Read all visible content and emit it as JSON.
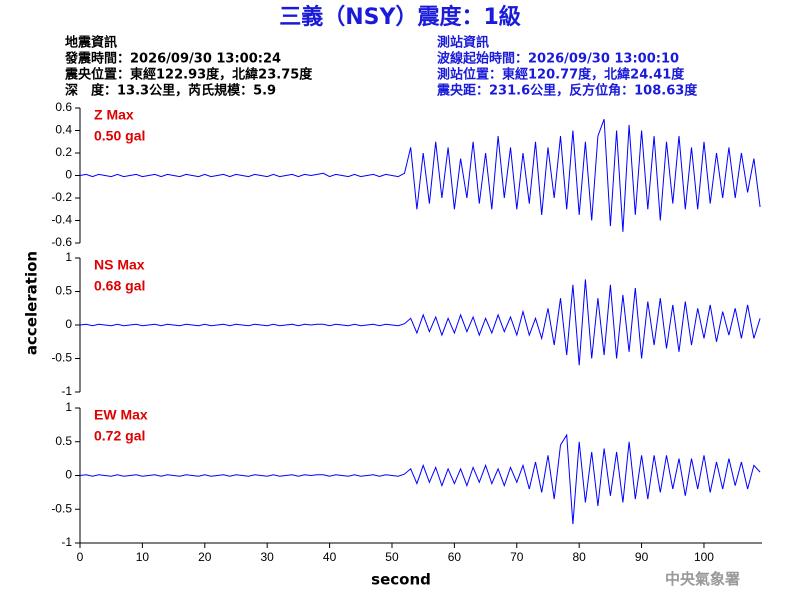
{
  "title": "三義（NSY）震度：1級",
  "event_info": [
    "地震資訊",
    "發震時間：2026/09/30 13:00:24",
    "震央位置：東經122.93度，北緯23.75度",
    "深　度：13.3公里，芮氏規模：5.9"
  ],
  "station_info": [
    "測站資訊",
    "波線起始時間：2026/09/30 13:00:10",
    "測站位置：東經120.77度，北緯24.41度",
    "震央距：231.6公里，反方位角：108.63度"
  ],
  "ylabel": "acceleration",
  "footer": "中央氣象署",
  "chart_data": [
    {
      "type": "line",
      "max_label": "Z Max",
      "max_value": "0.50 gal",
      "color": "#0000ff",
      "xlim": [
        0,
        109.3
      ],
      "ylim": [
        -0.6,
        0.6
      ],
      "yticks": [
        0.6,
        0.4,
        0.2,
        0,
        -0.2,
        -0.4,
        -0.6
      ],
      "x": [
        0,
        1,
        2,
        3,
        4,
        5,
        6,
        7,
        8,
        9,
        10,
        11,
        12,
        13,
        14,
        15,
        16,
        17,
        18,
        19,
        20,
        21,
        22,
        23,
        24,
        25,
        26,
        27,
        28,
        29,
        30,
        31,
        32,
        33,
        34,
        35,
        36,
        37,
        38,
        39,
        40,
        41,
        42,
        43,
        44,
        45,
        46,
        47,
        48,
        49,
        50,
        51,
        52,
        53,
        54,
        55,
        56,
        57,
        58,
        59,
        60,
        61,
        62,
        63,
        64,
        65,
        66,
        67,
        68,
        69,
        70,
        71,
        72,
        73,
        74,
        75,
        76,
        77,
        78,
        79,
        80,
        81,
        82,
        83,
        84,
        85,
        86,
        87,
        88,
        89,
        90,
        91,
        92,
        93,
        94,
        95,
        96,
        97,
        98,
        99,
        100,
        101,
        102,
        103,
        104,
        105,
        106,
        107,
        108,
        109
      ],
      "values": [
        0,
        0.01,
        -0.01,
        0.01,
        0,
        -0.01,
        0.01,
        -0.01,
        0,
        0.01,
        -0.01,
        0,
        0.01,
        -0.01,
        0.01,
        0,
        -0.01,
        0.01,
        0,
        -0.01,
        0.01,
        -0.01,
        0,
        0.01,
        -0.01,
        0.01,
        0,
        -0.01,
        0.01,
        0,
        -0.01,
        0.01,
        -0.01,
        0,
        0.01,
        -0.01,
        0.01,
        0,
        0.01,
        0.02,
        -0.01,
        0.01,
        0,
        -0.01,
        0.01,
        -0.01,
        0,
        0.01,
        -0.01,
        0.01,
        0,
        -0.01,
        0.02,
        0.25,
        -0.3,
        0.2,
        -0.25,
        0.3,
        -0.2,
        0.25,
        -0.3,
        0.15,
        -0.2,
        0.3,
        -0.25,
        0.2,
        -0.3,
        0.35,
        -0.2,
        0.25,
        -0.3,
        0.2,
        -0.25,
        0.3,
        -0.35,
        0.25,
        -0.2,
        0.35,
        -0.3,
        0.4,
        -0.35,
        0.3,
        -0.4,
        0.35,
        0.5,
        -0.45,
        0.4,
        -0.5,
        0.45,
        -0.35,
        0.4,
        -0.3,
        0.35,
        -0.4,
        0.3,
        -0.25,
        0.35,
        -0.3,
        0.25,
        -0.3,
        0.3,
        -0.25,
        0.2,
        -0.2,
        0.25,
        -0.2,
        0.2,
        -0.15,
        0.15,
        -0.28
      ]
    },
    {
      "type": "line",
      "max_label": "NS Max",
      "max_value": "0.68 gal",
      "color": "#0000ff",
      "xlim": [
        0,
        109.3
      ],
      "ylim": [
        -1,
        1
      ],
      "yticks": [
        1,
        0.5,
        0,
        -0.5,
        -1
      ],
      "x": [
        0,
        1,
        2,
        3,
        4,
        5,
        6,
        7,
        8,
        9,
        10,
        11,
        12,
        13,
        14,
        15,
        16,
        17,
        18,
        19,
        20,
        21,
        22,
        23,
        24,
        25,
        26,
        27,
        28,
        29,
        30,
        31,
        32,
        33,
        34,
        35,
        36,
        37,
        38,
        39,
        40,
        41,
        42,
        43,
        44,
        45,
        46,
        47,
        48,
        49,
        50,
        51,
        52,
        53,
        54,
        55,
        56,
        57,
        58,
        59,
        60,
        61,
        62,
        63,
        64,
        65,
        66,
        67,
        68,
        69,
        70,
        71,
        72,
        73,
        74,
        75,
        76,
        77,
        78,
        79,
        80,
        81,
        82,
        83,
        84,
        85,
        86,
        87,
        88,
        89,
        90,
        91,
        92,
        93,
        94,
        95,
        96,
        97,
        98,
        99,
        100,
        101,
        102,
        103,
        104,
        105,
        106,
        107,
        108,
        109
      ],
      "values": [
        0,
        0.01,
        -0.01,
        0.01,
        0,
        -0.01,
        0.01,
        -0.01,
        0,
        0.01,
        -0.01,
        0,
        0.01,
        -0.01,
        0.01,
        0,
        -0.01,
        0.01,
        0,
        -0.01,
        0.01,
        -0.01,
        0,
        0.01,
        -0.01,
        0.01,
        0,
        -0.01,
        0.01,
        0,
        -0.01,
        0.01,
        -0.01,
        0,
        0.01,
        -0.01,
        0.01,
        0,
        0.01,
        0.01,
        -0.01,
        0.01,
        0,
        -0.01,
        0.01,
        -0.01,
        0,
        0.01,
        -0.01,
        0.01,
        0,
        -0.01,
        0.02,
        0.1,
        -0.12,
        0.15,
        -0.1,
        0.12,
        -0.15,
        0.1,
        -0.12,
        0.15,
        -0.1,
        0.12,
        -0.15,
        0.1,
        -0.12,
        0.15,
        -0.1,
        0.12,
        -0.15,
        0.2,
        -0.15,
        0.1,
        -0.2,
        0.25,
        -0.3,
        0.4,
        -0.45,
        0.6,
        -0.6,
        0.68,
        -0.5,
        0.4,
        -0.45,
        0.6,
        -0.5,
        0.45,
        -0.4,
        0.55,
        -0.5,
        0.35,
        -0.3,
        0.4,
        -0.35,
        0.3,
        -0.4,
        0.35,
        -0.3,
        0.25,
        -0.2,
        0.3,
        -0.25,
        0.2,
        -0.15,
        0.25,
        -0.2,
        0.3,
        -0.2,
        0.1
      ]
    },
    {
      "type": "line",
      "max_label": "EW Max",
      "max_value": "0.72 gal",
      "color": "#0000ff",
      "xlim": [
        0,
        109.3
      ],
      "ylim": [
        -1,
        1
      ],
      "yticks": [
        1,
        0.5,
        0,
        -0.5,
        -1
      ],
      "xticks": [
        0,
        10,
        20,
        30,
        40,
        50,
        60,
        70,
        80,
        90,
        100
      ],
      "xlabel": "second",
      "x": [
        0,
        1,
        2,
        3,
        4,
        5,
        6,
        7,
        8,
        9,
        10,
        11,
        12,
        13,
        14,
        15,
        16,
        17,
        18,
        19,
        20,
        21,
        22,
        23,
        24,
        25,
        26,
        27,
        28,
        29,
        30,
        31,
        32,
        33,
        34,
        35,
        36,
        37,
        38,
        39,
        40,
        41,
        42,
        43,
        44,
        45,
        46,
        47,
        48,
        49,
        50,
        51,
        52,
        53,
        54,
        55,
        56,
        57,
        58,
        59,
        60,
        61,
        62,
        63,
        64,
        65,
        66,
        67,
        68,
        69,
        70,
        71,
        72,
        73,
        74,
        75,
        76,
        77,
        78,
        79,
        80,
        81,
        82,
        83,
        84,
        85,
        86,
        87,
        88,
        89,
        90,
        91,
        92,
        93,
        94,
        95,
        96,
        97,
        98,
        99,
        100,
        101,
        102,
        103,
        104,
        105,
        106,
        107,
        108,
        109
      ],
      "values": [
        0,
        0.01,
        -0.01,
        0.01,
        0,
        -0.01,
        0.01,
        -0.01,
        0,
        0.01,
        -0.01,
        0,
        0.01,
        -0.01,
        0.01,
        0,
        -0.01,
        0.01,
        0,
        -0.01,
        0.01,
        -0.01,
        0,
        0.01,
        -0.01,
        0.01,
        0,
        -0.01,
        0.01,
        0,
        -0.01,
        0.01,
        -0.01,
        0,
        0.01,
        -0.01,
        0.01,
        0,
        0.01,
        0.01,
        -0.01,
        0.01,
        0,
        -0.01,
        0.01,
        -0.01,
        0,
        0.01,
        -0.01,
        0.01,
        0,
        -0.01,
        0.02,
        0.1,
        -0.12,
        0.15,
        -0.1,
        0.12,
        -0.15,
        0.1,
        -0.12,
        0.1,
        -0.15,
        0.12,
        -0.1,
        0.15,
        -0.12,
        0.1,
        -0.15,
        0.12,
        -0.1,
        0.15,
        -0.2,
        0.2,
        -0.25,
        0.3,
        -0.35,
        0.45,
        0.6,
        -0.72,
        0.5,
        -0.4,
        0.35,
        -0.45,
        0.4,
        -0.3,
        0.35,
        -0.4,
        0.5,
        -0.35,
        0.3,
        -0.35,
        0.3,
        -0.25,
        0.3,
        -0.2,
        0.25,
        -0.3,
        0.25,
        -0.2,
        0.3,
        -0.25,
        0.2,
        -0.2,
        0.25,
        -0.15,
        0.2,
        -0.2,
        0.15,
        0.05
      ]
    }
  ]
}
